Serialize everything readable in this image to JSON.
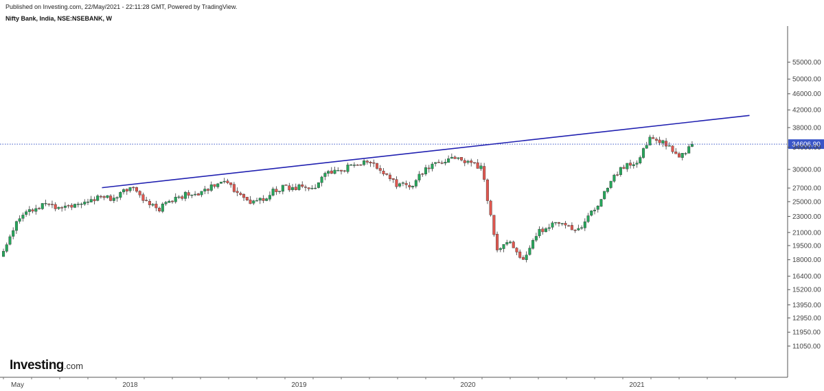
{
  "header": {
    "published": "Published on Investing.com, 22/May/2021 - 22:11:28 GMT, Powered by TradingView.",
    "symbol": "Nifty Bank, India, NSE:NSEBANK, W"
  },
  "logo": {
    "main": "Investing",
    "suffix": ".com"
  },
  "chart_data": {
    "type": "candlestick",
    "title": "Nifty Bank, India, NSE:NSEBANK, W",
    "y_scale": "log",
    "y_ticks": [
      "55000.00",
      "50000.00",
      "46000.00",
      "42000.00",
      "38000.00",
      "34000.00",
      "30000.00",
      "27000.00",
      "25000.00",
      "23000.00",
      "21000.00",
      "19500.00",
      "18000.00",
      "16400.00",
      "15200.00",
      "13950.00",
      "12950.00",
      "11950.00",
      "11050.00"
    ],
    "x_ticks": [
      "May",
      "2018",
      "2019",
      "2020",
      "2021"
    ],
    "last_price_label": "34606.90",
    "last_price": 34606.9,
    "colors": {
      "up": "#26a65b",
      "down": "#e0574f",
      "trendline": "#1f1fb0",
      "price_line": "#3a56c8"
    },
    "trendline": {
      "from": {
        "date": "2017-11",
        "value": 27050
      },
      "to": {
        "date": "2021-09",
        "value": 40700
      }
    },
    "close_path": [
      [
        "2017-04",
        19000
      ],
      [
        "2017-05",
        22500
      ],
      [
        "2017-06",
        23800
      ],
      [
        "2017-07",
        24800
      ],
      [
        "2017-08",
        24000
      ],
      [
        "2017-09",
        24500
      ],
      [
        "2017-10",
        25100
      ],
      [
        "2017-11",
        25600
      ],
      [
        "2017-12",
        25500
      ],
      [
        "2018-01",
        27200
      ],
      [
        "2018-02",
        24900
      ],
      [
        "2018-03",
        23900
      ],
      [
        "2018-04",
        25200
      ],
      [
        "2018-05",
        26100
      ],
      [
        "2018-06",
        26400
      ],
      [
        "2018-07",
        27500
      ],
      [
        "2018-08",
        28000
      ],
      [
        "2018-09",
        25200
      ],
      [
        "2018-10",
        24800
      ],
      [
        "2018-11",
        26300
      ],
      [
        "2018-12",
        27100
      ],
      [
        "2019-01",
        27200
      ],
      [
        "2019-02",
        26900
      ],
      [
        "2019-03",
        29900
      ],
      [
        "2019-04",
        29700
      ],
      [
        "2019-05",
        31000
      ],
      [
        "2019-06",
        31100
      ],
      [
        "2019-07",
        29500
      ],
      [
        "2019-08",
        27500
      ],
      [
        "2019-09",
        27500
      ],
      [
        "2019-10",
        30000
      ],
      [
        "2019-11",
        31500
      ],
      [
        "2019-12",
        31800
      ],
      [
        "2020-01",
        31300
      ],
      [
        "2020-02",
        30200
      ],
      [
        "2020-03",
        19300
      ],
      [
        "2020-04",
        19600
      ],
      [
        "2020-05",
        17800
      ],
      [
        "2020-06",
        21200
      ],
      [
        "2020-07",
        22000
      ],
      [
        "2020-08",
        21800
      ],
      [
        "2020-09",
        21500
      ],
      [
        "2020-10",
        24000
      ],
      [
        "2020-11",
        27500
      ],
      [
        "2020-12",
        30500
      ],
      [
        "2021-01",
        31500
      ],
      [
        "2021-02",
        36500
      ],
      [
        "2021-03",
        34600
      ],
      [
        "2021-04",
        32000
      ],
      [
        "2021-05",
        34606.9
      ]
    ]
  }
}
